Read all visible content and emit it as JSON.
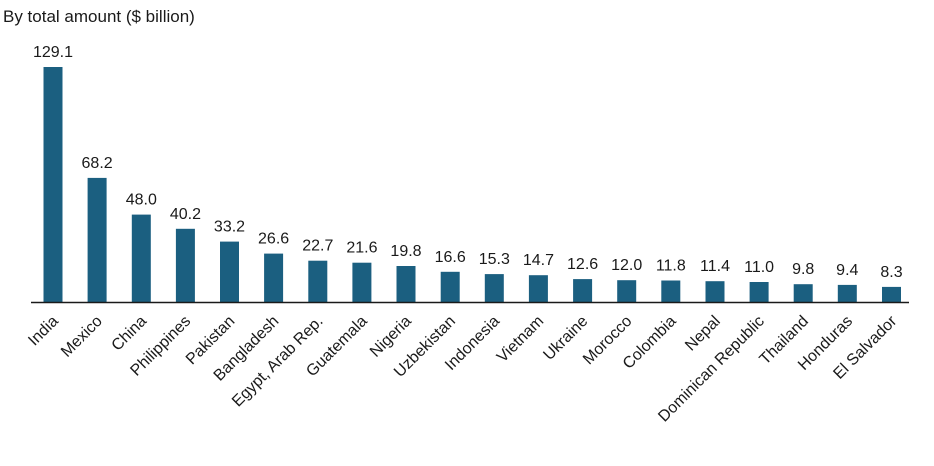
{
  "chart_data": {
    "type": "bar",
    "title": "By total amount ($ billion)",
    "categories": [
      "India",
      "Mexico",
      "China",
      "Philippines",
      "Pakistan",
      "Bangladesh",
      "Egypt, Arab Rep.",
      "Guatemala",
      "Nigeria",
      "Uzbekistan",
      "Indonesia",
      "Vietnam",
      "Ukraine",
      "Morocco",
      "Colombia",
      "Nepal",
      "Dominican Republic",
      "Thailand",
      "Honduras",
      "El Salvador"
    ],
    "values": [
      129.1,
      68.2,
      48.0,
      40.2,
      33.2,
      26.6,
      22.7,
      21.6,
      19.8,
      16.6,
      15.3,
      14.7,
      12.6,
      12.0,
      11.8,
      11.4,
      11.0,
      9.8,
      9.4,
      8.3
    ],
    "value_labels": [
      "129.1",
      "68.2",
      "48.0",
      "40.2",
      "33.2",
      "26.6",
      "22.7",
      "21.6",
      "19.8",
      "16.6",
      "15.3",
      "14.7",
      "12.6",
      "12.0",
      "11.8",
      "11.4",
      "11.0",
      "9.8",
      "9.4",
      "8.3"
    ],
    "xlabel": "",
    "ylabel": "",
    "ylim": [
      0,
      129.1
    ],
    "grid": false,
    "legend": "none",
    "bar_color": "#1b5f80",
    "axis_color": "#1a1a1a"
  }
}
